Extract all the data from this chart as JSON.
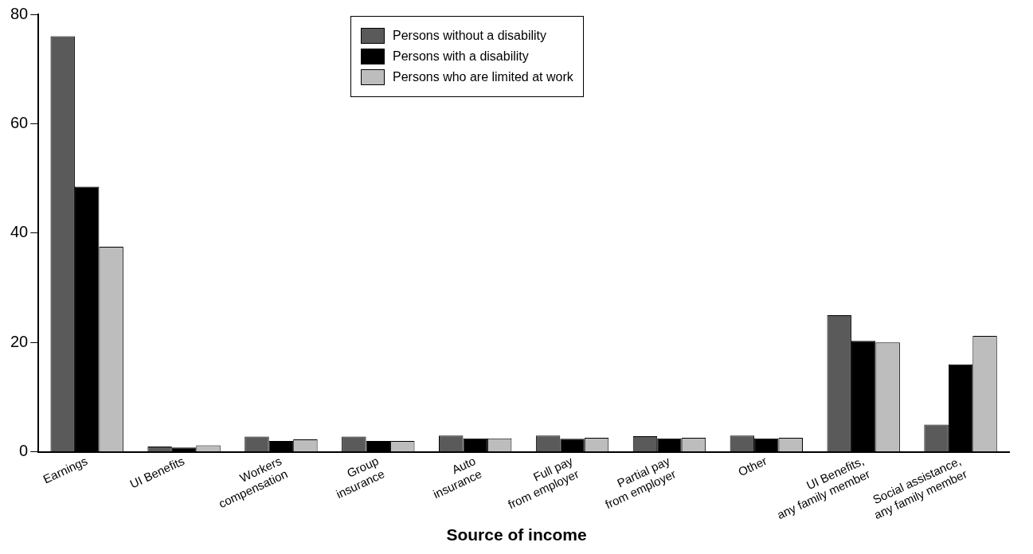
{
  "chart_data": {
    "type": "bar",
    "xlabel": "Source of income",
    "categories": [
      "Earnings",
      "UI Benefits",
      "Workers\ncompensation",
      "Group\ninsurance",
      "Auto\ninsurance",
      "Full pay\nfrom employer",
      "Partial pay\nfrom employer",
      "Other",
      "UI Benefits,\nany family member",
      "Social assistance,\nany family member"
    ],
    "series": [
      {
        "name": "Persons without a disability",
        "color": "#5a5a5a",
        "values": [
          76,
          1,
          2.8,
          2.8,
          3,
          3,
          2.9,
          3,
          25,
          5
        ]
      },
      {
        "name": "Persons with a disability",
        "color": "#000000",
        "values": [
          48.5,
          0.8,
          2,
          2,
          2.5,
          2.4,
          2.5,
          2.5,
          20.3,
          16
        ]
      },
      {
        "name": "Persons who are limited at work",
        "color": "#bdbdbd",
        "values": [
          37.5,
          1.2,
          2.3,
          2,
          2.5,
          2.6,
          2.6,
          2.6,
          20,
          21.2
        ]
      }
    ],
    "ylim": [
      0,
      80
    ],
    "yticks": [
      0,
      20,
      40,
      60,
      80
    ],
    "grid": false,
    "legend": "top"
  }
}
